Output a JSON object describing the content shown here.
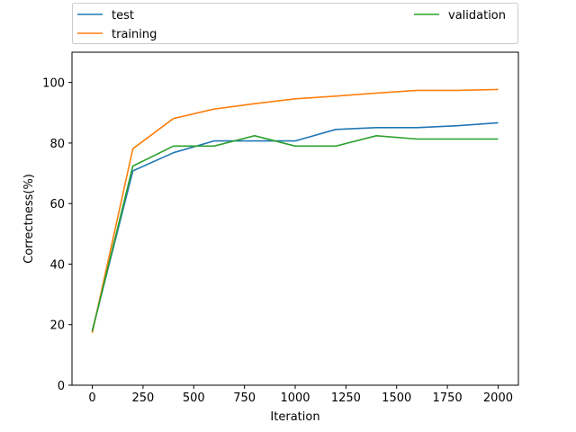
{
  "chart_data": {
    "type": "line",
    "xlabel": "Iteration",
    "ylabel": "Correctness(%)",
    "xlim": [
      -100,
      2100
    ],
    "ylim": [
      0,
      110
    ],
    "xticks": [
      0,
      250,
      500,
      750,
      1000,
      1250,
      1500,
      1750,
      2000
    ],
    "yticks": [
      0,
      20,
      40,
      60,
      80,
      100
    ],
    "grid": false,
    "legend_placement": "above plot, two columns",
    "x": [
      0,
      200,
      400,
      600,
      800,
      1000,
      1200,
      1400,
      1600,
      1800,
      2000
    ],
    "series": [
      {
        "name": "test",
        "color": "#1f77b4",
        "values": [
          18,
          70.8,
          76.8,
          80.7,
          80.7,
          80.7,
          84.5,
          85.1,
          85.1,
          85.7,
          86.7
        ]
      },
      {
        "name": "training",
        "color": "#ff7f0e",
        "values": [
          17.3,
          78.1,
          88.1,
          91.2,
          93,
          94.6,
          95.5,
          96.5,
          97.4,
          97.4,
          97.7
        ]
      },
      {
        "name": "validation",
        "color": "#2ca02c",
        "values": [
          17.8,
          72.4,
          79,
          79,
          82.4,
          79,
          79,
          82.4,
          81.3,
          81.3,
          81.3
        ]
      }
    ]
  }
}
